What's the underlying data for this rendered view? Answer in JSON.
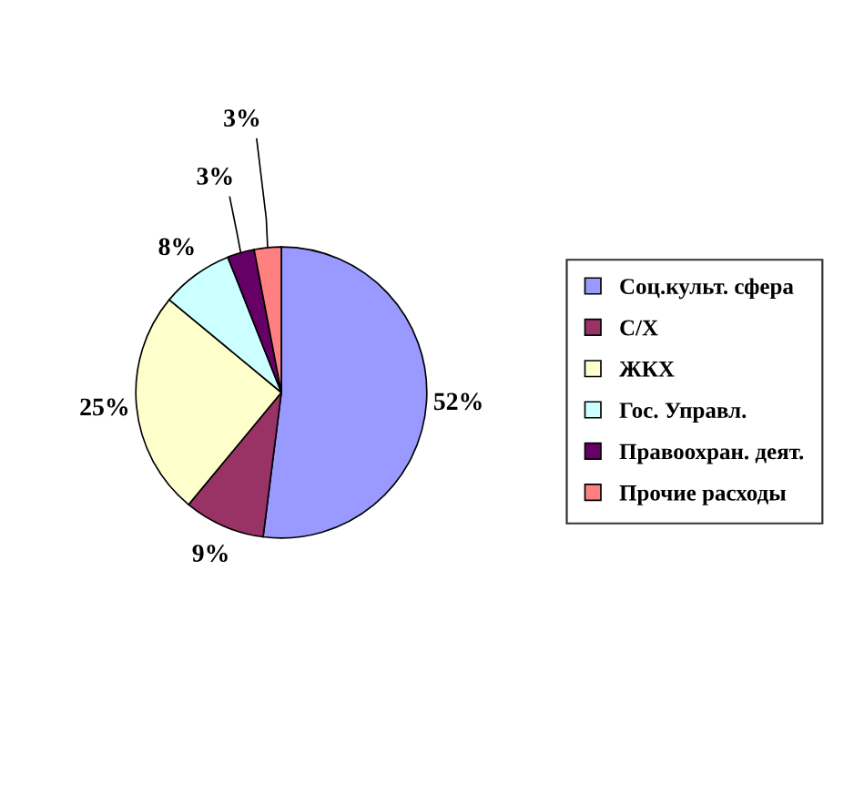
{
  "chart_data": {
    "type": "pie",
    "categories": [
      "Соц.культ. сфера",
      "С/Х",
      "ЖКХ",
      "Гос. Управл.",
      "Правоохран. деят.",
      "Прочие расходы"
    ],
    "values": [
      52,
      9,
      25,
      8,
      3,
      3
    ],
    "colors": [
      "#9999ff",
      "#993366",
      "#ffffcc",
      "#ccffff",
      "#660066",
      "#ff8080"
    ],
    "value_labels": [
      "52%",
      "9%",
      "25%",
      "8%",
      "3%",
      "3%"
    ],
    "legend": "right"
  }
}
